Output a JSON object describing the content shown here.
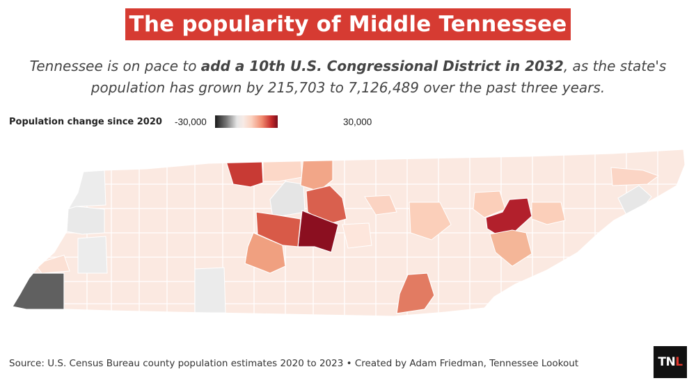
{
  "title": "The popularity of Middle Tennessee",
  "subtitle": {
    "part1": "Tennessee is on pace to ",
    "bold": "add a 10th U.S. Congressional District in 2032",
    "part2": ", as the state's population has grown by 215,703 to 7,126,489 over the past three years."
  },
  "legend": {
    "title": "Population change since 2020",
    "min_label": "-30,000",
    "max_label": "30,000",
    "min_value": -30000,
    "max_value": 30000
  },
  "colors": {
    "title_bg": "#d63b32",
    "base": "#fbe9e1",
    "darkest_gain": "#8b0f20",
    "largest_loss": "#666666"
  },
  "source": "Source: U.S. Census Bureau county population estimates 2020 to 2023 • Created by Adam Friedman, Tennessee Lookout",
  "logo": {
    "tn": "TN",
    "l": "L"
  }
}
